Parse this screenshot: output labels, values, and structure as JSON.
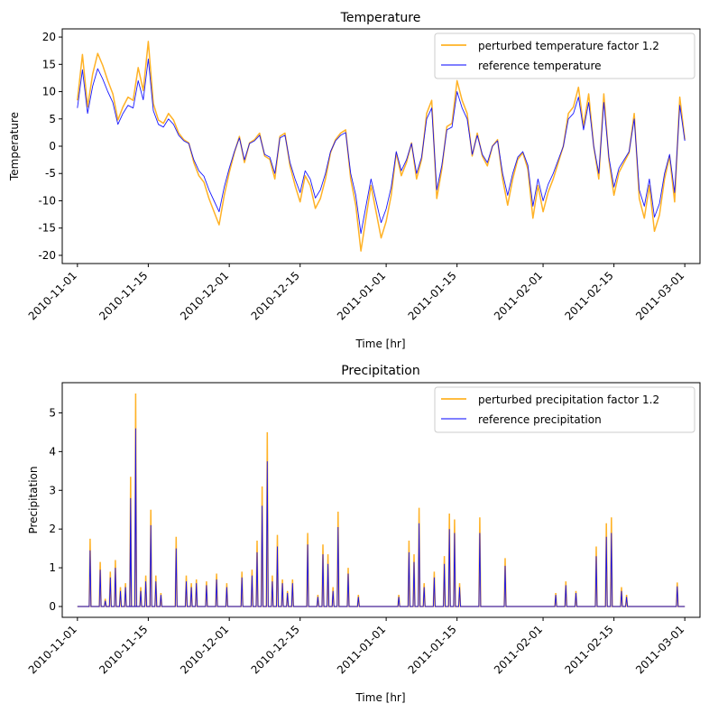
{
  "chart_data": [
    {
      "type": "line",
      "title": "Temperature",
      "xlabel": "Time [hr]",
      "ylabel": "Temperature",
      "xlim": [
        "2010-10-29",
        "2011-03-04"
      ],
      "ylim": [
        -21.5,
        21.5
      ],
      "yticks": [
        -20,
        -15,
        -10,
        -5,
        0,
        5,
        10,
        15,
        20
      ],
      "xticks": [
        "2010-11-01",
        "2010-11-15",
        "2010-12-01",
        "2010-12-15",
        "2011-01-01",
        "2011-01-15",
        "2011-02-01",
        "2011-02-15",
        "2011-03-01"
      ],
      "legend_position": "upper right",
      "grid": false,
      "x": [
        "2010-11-01",
        "2010-11-02",
        "2010-11-03",
        "2010-11-04",
        "2010-11-05",
        "2010-11-06",
        "2010-11-07",
        "2010-11-08",
        "2010-11-09",
        "2010-11-10",
        "2010-11-11",
        "2010-11-12",
        "2010-11-13",
        "2010-11-14",
        "2010-11-15",
        "2010-11-16",
        "2010-11-17",
        "2010-11-18",
        "2010-11-19",
        "2010-11-20",
        "2010-11-21",
        "2010-11-22",
        "2010-11-23",
        "2010-11-24",
        "2010-11-25",
        "2010-11-26",
        "2010-11-27",
        "2010-11-28",
        "2010-11-29",
        "2010-11-30",
        "2010-12-01",
        "2010-12-02",
        "2010-12-03",
        "2010-12-04",
        "2010-12-05",
        "2010-12-06",
        "2010-12-07",
        "2010-12-08",
        "2010-12-09",
        "2010-12-10",
        "2010-12-11",
        "2010-12-12",
        "2010-12-13",
        "2010-12-14",
        "2010-12-15",
        "2010-12-16",
        "2010-12-17",
        "2010-12-18",
        "2010-12-19",
        "2010-12-20",
        "2010-12-21",
        "2010-12-22",
        "2010-12-23",
        "2010-12-24",
        "2010-12-25",
        "2010-12-26",
        "2010-12-27",
        "2010-12-28",
        "2010-12-29",
        "2010-12-30",
        "2010-12-31",
        "2011-01-01",
        "2011-01-02",
        "2011-01-03",
        "2011-01-04",
        "2011-01-05",
        "2011-01-06",
        "2011-01-07",
        "2011-01-08",
        "2011-01-09",
        "2011-01-10",
        "2011-01-11",
        "2011-01-12",
        "2011-01-13",
        "2011-01-14",
        "2011-01-15",
        "2011-01-16",
        "2011-01-17",
        "2011-01-18",
        "2011-01-19",
        "2011-01-20",
        "2011-01-21",
        "2011-01-22",
        "2011-01-23",
        "2011-01-24",
        "2011-01-25",
        "2011-01-26",
        "2011-01-27",
        "2011-01-28",
        "2011-01-29",
        "2011-01-30",
        "2011-01-31",
        "2011-02-01",
        "2011-02-02",
        "2011-02-03",
        "2011-02-04",
        "2011-02-05",
        "2011-02-06",
        "2011-02-07",
        "2011-02-08",
        "2011-02-09",
        "2011-02-10",
        "2011-02-11",
        "2011-02-12",
        "2011-02-13",
        "2011-02-14",
        "2011-02-15",
        "2011-02-16",
        "2011-02-17",
        "2011-02-18",
        "2011-02-19",
        "2011-02-20",
        "2011-02-21",
        "2011-02-22",
        "2011-02-23",
        "2011-02-24",
        "2011-02-25",
        "2011-02-26",
        "2011-02-27",
        "2011-02-28",
        "2011-03-01"
      ],
      "series": [
        {
          "name": "perturbed temperature factor 1.2",
          "color": "#FFA500",
          "values": [
            8.4,
            16.8,
            7.2,
            13.2,
            17.0,
            14.8,
            12.0,
            9.6,
            4.8,
            7.2,
            9.0,
            8.4,
            14.4,
            10.2,
            19.2,
            7.8,
            4.8,
            4.2,
            6.0,
            4.8,
            2.4,
            1.2,
            0.6,
            -3.0,
            -5.4,
            -6.6,
            -9.6,
            -12.0,
            -14.4,
            -9.0,
            -4.8,
            -1.2,
            1.8,
            -3.0,
            0.6,
            1.2,
            2.4,
            -1.8,
            -2.4,
            -6.0,
            1.8,
            2.4,
            -3.6,
            -7.2,
            -10.2,
            -5.4,
            -7.2,
            -11.4,
            -9.6,
            -6.0,
            -1.2,
            1.2,
            2.4,
            3.0,
            -6.0,
            -10.8,
            -19.2,
            -13.2,
            -7.2,
            -12.0,
            -16.8,
            -13.8,
            -9.0,
            -1.2,
            -5.4,
            -3.0,
            0.6,
            -6.0,
            -2.4,
            6.0,
            8.4,
            -9.6,
            -4.2,
            3.6,
            4.2,
            12.0,
            8.4,
            6.0,
            -1.8,
            2.4,
            -1.8,
            -3.6,
            0.0,
            1.2,
            -6.0,
            -10.8,
            -6.0,
            -2.4,
            -1.2,
            -4.2,
            -13.2,
            -7.2,
            -12.0,
            -8.4,
            -6.0,
            -3.0,
            0.0,
            6.0,
            7.2,
            10.8,
            3.6,
            9.6,
            0.0,
            -6.0,
            9.6,
            -2.4,
            -9.0,
            -4.8,
            -3.0,
            -1.2,
            6.0,
            -9.6,
            -13.2,
            -7.2,
            -15.6,
            -12.6,
            -6.0,
            -1.8,
            -10.2,
            9.0,
            1.2
          ]
        },
        {
          "name": "reference temperature",
          "color": "#0000FF",
          "values": [
            7.0,
            14.0,
            6.0,
            11.0,
            14.2,
            12.3,
            10.0,
            8.0,
            4.0,
            6.0,
            7.5,
            7.0,
            12.0,
            8.5,
            16.0,
            6.5,
            4.0,
            3.5,
            5.0,
            4.0,
            2.0,
            1.0,
            0.5,
            -2.5,
            -4.5,
            -5.5,
            -8.0,
            -10.0,
            -12.0,
            -7.5,
            -4.0,
            -1.0,
            1.5,
            -2.5,
            0.5,
            1.0,
            2.0,
            -1.5,
            -2.0,
            -5.0,
            1.5,
            2.0,
            -3.0,
            -6.0,
            -8.5,
            -4.5,
            -6.0,
            -9.5,
            -8.0,
            -5.0,
            -1.0,
            1.0,
            2.0,
            2.5,
            -5.0,
            -9.0,
            -16.0,
            -11.0,
            -6.0,
            -10.0,
            -14.0,
            -11.5,
            -7.5,
            -1.0,
            -4.5,
            -2.5,
            0.5,
            -5.0,
            -2.0,
            5.0,
            7.0,
            -8.0,
            -3.5,
            3.0,
            3.5,
            10.0,
            7.0,
            5.0,
            -1.5,
            2.0,
            -1.5,
            -3.0,
            0.0,
            1.0,
            -5.0,
            -9.0,
            -5.0,
            -2.0,
            -1.0,
            -3.5,
            -11.0,
            -6.0,
            -10.0,
            -7.0,
            -5.0,
            -2.5,
            0.0,
            5.0,
            6.0,
            9.0,
            3.0,
            8.0,
            0.0,
            -5.0,
            8.0,
            -2.0,
            -7.5,
            -4.0,
            -2.5,
            -1.0,
            5.0,
            -8.0,
            -11.0,
            -6.0,
            -13.0,
            -10.5,
            -5.0,
            -1.5,
            -8.5,
            7.5,
            1.0
          ]
        }
      ]
    },
    {
      "type": "line",
      "title": "Precipitation",
      "xlabel": "Time [hr]",
      "ylabel": "Precipitation",
      "xlim": [
        "2010-10-29",
        "2011-03-04"
      ],
      "ylim": [
        -0.28,
        5.78
      ],
      "yticks": [
        0,
        1,
        2,
        3,
        4,
        5
      ],
      "xticks": [
        "2010-11-01",
        "2010-11-15",
        "2010-12-01",
        "2010-12-15",
        "2011-01-01",
        "2011-01-15",
        "2011-02-01",
        "2011-02-15",
        "2011-03-01"
      ],
      "legend_position": "upper right",
      "grid": false,
      "baseline": 0,
      "spikes": {
        "dates": [
          "2010-11-03",
          "2010-11-05",
          "2010-11-06",
          "2010-11-07",
          "2010-11-08",
          "2010-11-09",
          "2010-11-10",
          "2010-11-11",
          "2010-11-11",
          "2010-11-12",
          "2010-11-12",
          "2010-11-13",
          "2010-11-14",
          "2010-11-15",
          "2010-11-16",
          "2010-11-17",
          "2010-11-20",
          "2010-11-22",
          "2010-11-23",
          "2010-11-24",
          "2010-11-26",
          "2010-11-28",
          "2010-11-30",
          "2010-12-03",
          "2010-12-05",
          "2010-12-06",
          "2010-12-07",
          "2010-12-08",
          "2010-12-09",
          "2010-12-10",
          "2010-12-11",
          "2010-12-12",
          "2010-12-13",
          "2010-12-16",
          "2010-12-18",
          "2010-12-19",
          "2010-12-20",
          "2010-12-21",
          "2010-12-22",
          "2010-12-24",
          "2010-12-26",
          "2011-01-03",
          "2011-01-05",
          "2011-01-06",
          "2011-01-07",
          "2011-01-08",
          "2011-01-10",
          "2011-01-12",
          "2011-01-13",
          "2011-01-14",
          "2011-01-15",
          "2011-01-19",
          "2011-01-24",
          "2011-02-03",
          "2011-02-05",
          "2011-02-07",
          "2011-02-11",
          "2011-02-13",
          "2011-02-14",
          "2011-02-16",
          "2011-02-17",
          "2011-02-27"
        ],
        "perturbed": [
          1.75,
          1.15,
          0.2,
          0.9,
          1.2,
          0.5,
          0.6,
          2.2,
          3.35,
          5.5,
          4.3,
          0.5,
          0.8,
          2.5,
          0.8,
          0.35,
          1.8,
          0.8,
          0.6,
          0.7,
          0.65,
          0.85,
          0.6,
          0.9,
          0.95,
          1.7,
          3.1,
          4.5,
          0.8,
          1.85,
          0.7,
          0.4,
          0.7,
          1.9,
          0.3,
          1.6,
          1.35,
          0.5,
          2.45,
          1.0,
          0.3,
          0.3,
          1.7,
          1.35,
          2.55,
          0.6,
          0.9,
          1.3,
          2.4,
          2.25,
          0.6,
          2.3,
          1.25,
          0.35,
          0.65,
          0.4,
          1.55,
          2.15,
          2.3,
          0.5,
          0.3,
          0.62
        ],
        "reference": [
          1.45,
          0.95,
          0.15,
          0.75,
          1.0,
          0.4,
          0.5,
          1.8,
          2.8,
          4.6,
          3.6,
          0.4,
          0.65,
          2.1,
          0.65,
          0.3,
          1.5,
          0.65,
          0.5,
          0.6,
          0.55,
          0.7,
          0.5,
          0.75,
          0.8,
          1.4,
          2.6,
          3.75,
          0.65,
          1.55,
          0.6,
          0.35,
          0.6,
          1.6,
          0.25,
          1.35,
          1.1,
          0.4,
          2.05,
          0.85,
          0.25,
          0.25,
          1.4,
          1.15,
          2.15,
          0.5,
          0.75,
          1.1,
          2.0,
          1.9,
          0.5,
          1.9,
          1.05,
          0.3,
          0.55,
          0.35,
          1.3,
          1.8,
          1.9,
          0.4,
          0.25,
          0.52
        ]
      },
      "series": [
        {
          "name": "perturbed precipitation factor 1.2",
          "color": "#FFA500"
        },
        {
          "name": "reference precipitation",
          "color": "#0000FF"
        }
      ]
    }
  ]
}
